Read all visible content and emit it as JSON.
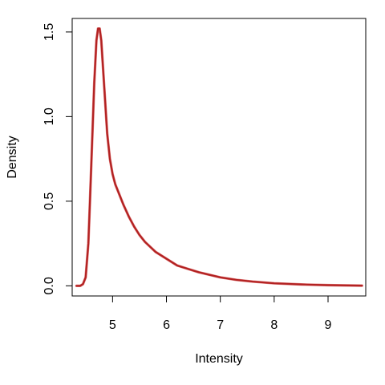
{
  "chart_data": {
    "type": "line",
    "title": "",
    "xlabel": "Intensity",
    "ylabel": "Density",
    "xlim": [
      4.25,
      9.7
    ],
    "ylim": [
      -0.06,
      1.58
    ],
    "x_ticks": [
      5,
      6,
      7,
      8,
      9
    ],
    "y_ticks": [
      0.0,
      0.5,
      1.0,
      1.5
    ],
    "x_tick_labels": [
      "5",
      "6",
      "7",
      "8",
      "9"
    ],
    "y_tick_labels": [
      "0.0",
      "0.5",
      "1.0",
      "1.5"
    ],
    "grid": false,
    "colors": {
      "line": "#b22222",
      "line_shadow": "#cc1a1a"
    },
    "series": [
      {
        "x": [
          4.33,
          4.4,
          4.45,
          4.5,
          4.55,
          4.58,
          4.62,
          4.66,
          4.7,
          4.73,
          4.76,
          4.79,
          4.82,
          4.86,
          4.9,
          4.95,
          5.0,
          5.05,
          5.1,
          5.2,
          5.3,
          5.4,
          5.5,
          5.6,
          5.8,
          6.0,
          6.2,
          6.4,
          6.6,
          6.8,
          7.0,
          7.3,
          7.6,
          8.0,
          8.5,
          9.0,
          9.63
        ],
        "values": [
          0.0,
          0.0,
          0.01,
          0.05,
          0.25,
          0.5,
          0.85,
          1.2,
          1.45,
          1.52,
          1.52,
          1.45,
          1.3,
          1.1,
          0.9,
          0.75,
          0.66,
          0.6,
          0.56,
          0.48,
          0.41,
          0.35,
          0.3,
          0.26,
          0.2,
          0.16,
          0.12,
          0.1,
          0.08,
          0.065,
          0.05,
          0.035,
          0.025,
          0.015,
          0.008,
          0.004,
          0.001
        ]
      }
    ]
  }
}
